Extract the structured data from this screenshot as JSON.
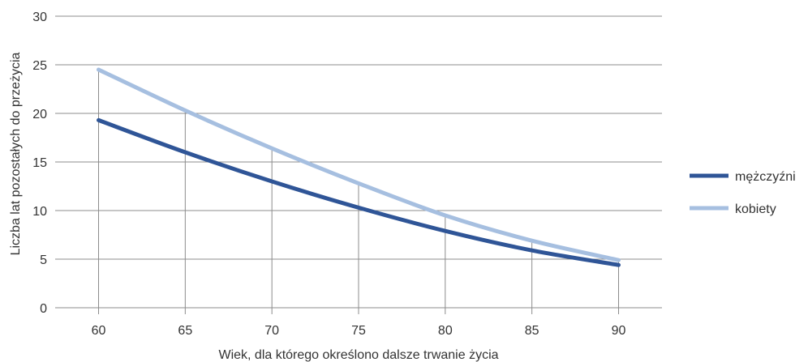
{
  "chart_data": {
    "type": "line",
    "x": [
      60,
      65,
      70,
      75,
      80,
      85,
      90
    ],
    "xlabel": "Wiek, dla którego określono dalsze trwanie życia",
    "ylabel": "Liczba lat pozostałych do przeżycia",
    "ylim": [
      0,
      30
    ],
    "yticks": [
      0,
      5,
      10,
      15,
      20,
      25,
      30
    ],
    "grid": "horizontal",
    "legend_position": "right",
    "series": [
      {
        "name": "mężczyźni",
        "values": [
          19.3,
          16.0,
          13.0,
          10.3,
          7.9,
          5.9,
          4.4
        ],
        "color": "#2f5597"
      },
      {
        "name": "kobiety",
        "values": [
          24.5,
          20.3,
          16.4,
          12.8,
          9.5,
          6.9,
          4.9
        ],
        "color": "#a6bfe0"
      }
    ]
  }
}
